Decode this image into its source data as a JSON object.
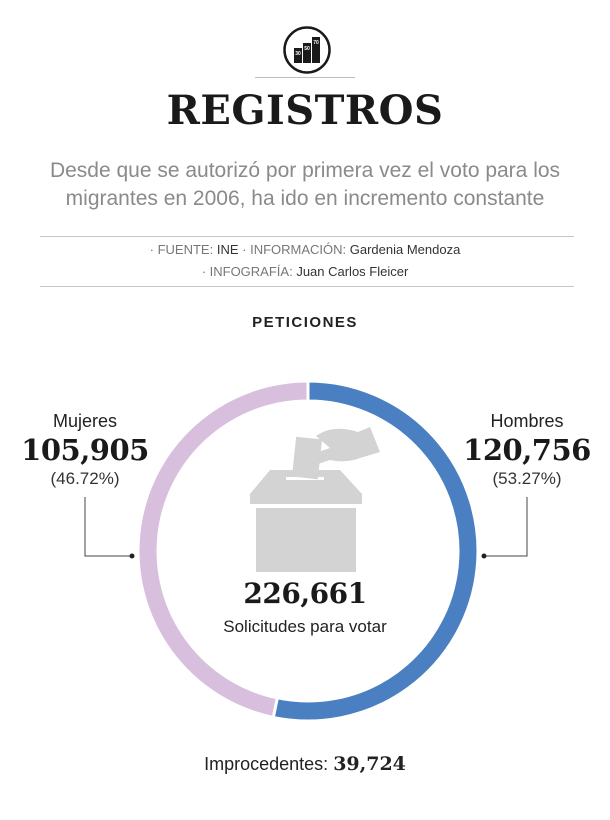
{
  "header": {
    "title": "REGISTROS",
    "subtitle_line1": "Desde que se autorizó por primera vez el voto para los",
    "subtitle_line2": "migrantes en 2006, ha ido en incremento constante"
  },
  "credits": {
    "fuente_key": "· FUENTE:",
    "fuente_val": "INE",
    "info_key": "· INFORMACIÓN:",
    "info_val": "Gardenia Mendoza",
    "infografia_key": "· INFOGRAFÍA:",
    "infografia_val": "Juan Carlos Fleicer"
  },
  "logo": {
    "icon": "bar-chart-buildings-icon",
    "bars": [
      "30",
      "50",
      "70"
    ]
  },
  "section_title": "PETICIONES",
  "chart_data": {
    "type": "pie",
    "title": "PETICIONES",
    "donut": true,
    "slices": [
      {
        "label": "Hombres",
        "value": 120756,
        "value_label": "120,756",
        "percent_label": "(53.27%)",
        "color": "#4a7fc1"
      },
      {
        "label": "Mujeres",
        "value": 105905,
        "value_label": "105,905",
        "percent_label": "(46.72%)",
        "color": "#d7bfdd"
      }
    ],
    "total": 226661,
    "total_label": "226,661",
    "total_caption": "Solicitudes para votar",
    "center_icon": "ballot-box-icon"
  },
  "footer": {
    "label": "Improcedentes:",
    "value": "39,724"
  }
}
